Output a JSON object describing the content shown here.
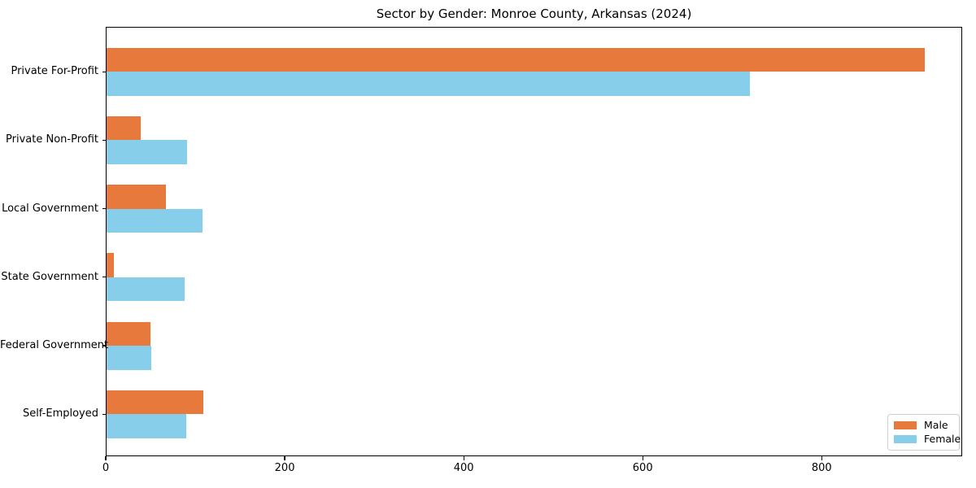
{
  "chart_data": {
    "type": "bar",
    "orientation": "horizontal",
    "title": "Sector by Gender: Monroe County, Arkansas (2024)",
    "categories": [
      "Private For-Profit",
      "Private Non-Profit",
      "Local Government",
      "State Government",
      "Federal Government",
      "Self-Employed"
    ],
    "series": [
      {
        "name": "Male",
        "color": "#e8793d",
        "values": [
          915,
          39,
          67,
          9,
          50,
          109
        ]
      },
      {
        "name": "Female",
        "color": "#87ceeb",
        "values": [
          720,
          91,
          108,
          88,
          51,
          90
        ]
      }
    ],
    "xlabel": "",
    "ylabel": "",
    "x_ticks": [
      "0",
      "200",
      "400",
      "600",
      "800"
    ],
    "x_tick_values": [
      0,
      200,
      400,
      600,
      800
    ],
    "xlim": [
      0,
      957
    ],
    "grid": false,
    "legend_position": "lower right",
    "axis_color": "#000000",
    "background_color": "#ffffff"
  }
}
